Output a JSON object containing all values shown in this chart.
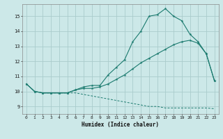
{
  "title": "",
  "xlabel": "Humidex (Indice chaleur)",
  "background_color": "#cce8e8",
  "grid_color": "#aacccc",
  "line_color": "#1a7a6e",
  "xlim": [
    -0.5,
    23.5
  ],
  "ylim": [
    8.5,
    15.8
  ],
  "yticks": [
    9,
    10,
    11,
    12,
    13,
    14,
    15
  ],
  "xticks": [
    0,
    1,
    2,
    3,
    4,
    5,
    6,
    7,
    8,
    9,
    10,
    11,
    12,
    13,
    14,
    15,
    16,
    17,
    18,
    19,
    20,
    21,
    22,
    23
  ],
  "line1_x": [
    0,
    1,
    2,
    3,
    4,
    5,
    6,
    7,
    8,
    9,
    10,
    11,
    12,
    13,
    14,
    15,
    16,
    17,
    18,
    19,
    20,
    21,
    22,
    23
  ],
  "line1_y": [
    10.5,
    10.0,
    9.9,
    9.9,
    9.9,
    9.9,
    10.1,
    10.3,
    10.4,
    10.4,
    11.1,
    11.6,
    12.1,
    13.3,
    14.0,
    15.0,
    15.1,
    15.5,
    15.0,
    14.7,
    13.8,
    13.3,
    12.5,
    10.7
  ],
  "line2_x": [
    0,
    1,
    2,
    3,
    4,
    5,
    6,
    7,
    8,
    9,
    10,
    11,
    12,
    13,
    14,
    15,
    16,
    17,
    18,
    19,
    20,
    21,
    22,
    23
  ],
  "line2_y": [
    10.5,
    10.0,
    9.9,
    9.9,
    9.9,
    9.9,
    10.1,
    10.2,
    10.2,
    10.3,
    10.5,
    10.8,
    11.1,
    11.5,
    11.9,
    12.2,
    12.5,
    12.8,
    13.1,
    13.3,
    13.4,
    13.2,
    12.5,
    10.7
  ],
  "line3_x": [
    0,
    1,
    2,
    3,
    4,
    5,
    6,
    7,
    8,
    9,
    10,
    11,
    12,
    13,
    14,
    15,
    16,
    17,
    18,
    19,
    20,
    21,
    22,
    23
  ],
  "line3_y": [
    10.5,
    10.0,
    9.9,
    9.9,
    9.9,
    9.9,
    9.9,
    9.8,
    9.7,
    9.6,
    9.5,
    9.4,
    9.3,
    9.2,
    9.1,
    9.0,
    9.0,
    8.9,
    8.9,
    8.9,
    8.9,
    8.9,
    8.9,
    8.85
  ],
  "xlabel_fontsize": 5.5,
  "tick_fontsize": 4.5
}
